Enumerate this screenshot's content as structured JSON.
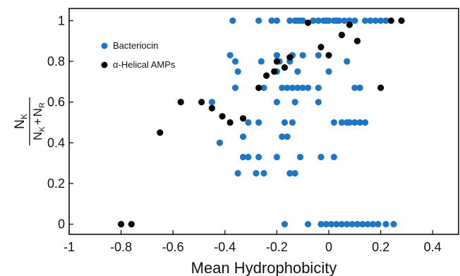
{
  "chart_data": {
    "type": "scatter",
    "title": "",
    "xlabel": "Mean Hydrophobicity",
    "ylabel": {
      "numerator_main": "N",
      "numerator_sub": "K",
      "den1_main": "N",
      "den1_sub": "K",
      "plus": "+",
      "den2_main": "N",
      "den2_sub": "R"
    },
    "xlim": [
      -1,
      0.5
    ],
    "ylim": [
      -0.05,
      1.06
    ],
    "xticks": [
      -1,
      -0.8,
      -0.6,
      -0.4,
      -0.2,
      0,
      0.2,
      0.4
    ],
    "xtick_labels": [
      "-1",
      "-0.8",
      "-0.6",
      "-0.4",
      "-0.2",
      "0",
      "0.2",
      "0.4"
    ],
    "yticks": [
      0,
      0.2,
      0.4,
      0.6,
      0.8,
      1
    ],
    "ytick_labels": [
      "0",
      "0.2",
      "0.4",
      "0.6",
      "0.8",
      "1"
    ],
    "grid": false,
    "legend_position": "top-left",
    "series": [
      {
        "name": "Bacteriocin",
        "color": "#1f77c4",
        "points": [
          [
            -0.37,
            1
          ],
          [
            -0.27,
            1
          ],
          [
            -0.22,
            1
          ],
          [
            -0.2,
            1
          ],
          [
            -0.15,
            1
          ],
          [
            -0.13,
            1
          ],
          [
            -0.12,
            1
          ],
          [
            -0.11,
            1
          ],
          [
            -0.1,
            1
          ],
          [
            -0.06,
            1
          ],
          [
            -0.04,
            1
          ],
          [
            -0.02,
            1
          ],
          [
            0,
            1
          ],
          [
            0.02,
            1
          ],
          [
            0.04,
            1
          ],
          [
            0.06,
            1
          ],
          [
            0.08,
            1
          ],
          [
            0.1,
            1
          ],
          [
            0.14,
            1
          ],
          [
            0.16,
            1
          ],
          [
            0.18,
            1
          ],
          [
            0.2,
            1
          ],
          [
            0.22,
            1
          ],
          [
            0.03,
            1
          ],
          [
            -0.01,
            1
          ],
          [
            -0.38,
            0.83
          ],
          [
            -0.2,
            0.83
          ],
          [
            -0.14,
            0.83
          ],
          [
            -0.1,
            0.83
          ],
          [
            -0.04,
            0.83
          ],
          [
            -0.36,
            0.8
          ],
          [
            -0.26,
            0.8
          ],
          [
            -0.19,
            0.8
          ],
          [
            -0.15,
            0.8
          ],
          [
            0.07,
            0.8
          ],
          [
            -0.35,
            0.75
          ],
          [
            -0.2,
            0.75
          ],
          [
            -0.12,
            0.75
          ],
          [
            0.0,
            0.75
          ],
          [
            -0.36,
            0.67
          ],
          [
            -0.25,
            0.67
          ],
          [
            -0.18,
            0.67
          ],
          [
            -0.16,
            0.67
          ],
          [
            -0.14,
            0.67
          ],
          [
            -0.12,
            0.67
          ],
          [
            -0.1,
            0.67
          ],
          [
            -0.08,
            0.67
          ],
          [
            -0.04,
            0.67
          ],
          [
            0.1,
            0.67
          ],
          [
            0.12,
            0.67
          ],
          [
            -0.2,
            0.6
          ],
          [
            -0.13,
            0.6
          ],
          [
            -0.04,
            0.6
          ],
          [
            -0.45,
            0.6
          ],
          [
            0.02,
            0.5
          ],
          [
            0.05,
            0.5
          ],
          [
            0.07,
            0.5
          ],
          [
            0.08,
            0.5
          ],
          [
            0.1,
            0.5
          ],
          [
            0.12,
            0.5
          ],
          [
            0.14,
            0.5
          ],
          [
            -0.31,
            0.5
          ],
          [
            -0.27,
            0.5
          ],
          [
            -0.17,
            0.5
          ],
          [
            -0.14,
            0.5
          ],
          [
            -0.33,
            0.43
          ],
          [
            -0.18,
            0.43
          ],
          [
            -0.16,
            0.43
          ],
          [
            -0.42,
            0.4
          ],
          [
            -0.33,
            0.33
          ],
          [
            -0.31,
            0.33
          ],
          [
            -0.27,
            0.33
          ],
          [
            -0.2,
            0.33
          ],
          [
            -0.11,
            0.33
          ],
          [
            -0.03,
            0.33
          ],
          [
            0.02,
            0.33
          ],
          [
            -0.35,
            0.25
          ],
          [
            -0.28,
            0.25
          ],
          [
            -0.25,
            0.25
          ],
          [
            -0.15,
            0.25
          ],
          [
            -0.13,
            0.25
          ],
          [
            -0.17,
            0
          ],
          [
            -0.08,
            0
          ],
          [
            -0.03,
            0
          ],
          [
            -0.01,
            0
          ],
          [
            0.01,
            0
          ],
          [
            0.03,
            0
          ],
          [
            0.05,
            0
          ],
          [
            0.07,
            0
          ],
          [
            0.09,
            0
          ],
          [
            0.11,
            0
          ],
          [
            0.13,
            0
          ],
          [
            0.15,
            0
          ],
          [
            0.17,
            0
          ],
          [
            0.19,
            0
          ],
          [
            0.22,
            0
          ],
          [
            0.25,
            0
          ]
        ]
      },
      {
        "name": "α-Helical AMPs",
        "color": "#000000",
        "points": [
          [
            -0.8,
            0
          ],
          [
            -0.76,
            0
          ],
          [
            -0.65,
            0.45
          ],
          [
            -0.57,
            0.6
          ],
          [
            -0.49,
            0.6
          ],
          [
            -0.45,
            0.57
          ],
          [
            -0.41,
            0.53
          ],
          [
            -0.38,
            0.5
          ],
          [
            -0.33,
            0.52
          ],
          [
            -0.27,
            0.67
          ],
          [
            -0.24,
            0.73
          ],
          [
            -0.21,
            0.75
          ],
          [
            -0.2,
            0.8
          ],
          [
            -0.17,
            0.77
          ],
          [
            -0.15,
            0.82
          ],
          [
            -0.08,
            0.99
          ],
          [
            -0.03,
            0.87
          ],
          [
            0.0,
            0.83
          ],
          [
            0.05,
            0.93
          ],
          [
            0.08,
            0.98
          ],
          [
            0.11,
            0.9
          ],
          [
            0.2,
            0.67
          ],
          [
            0.24,
            1.0
          ],
          [
            0.28,
            1.0
          ]
        ]
      }
    ]
  }
}
